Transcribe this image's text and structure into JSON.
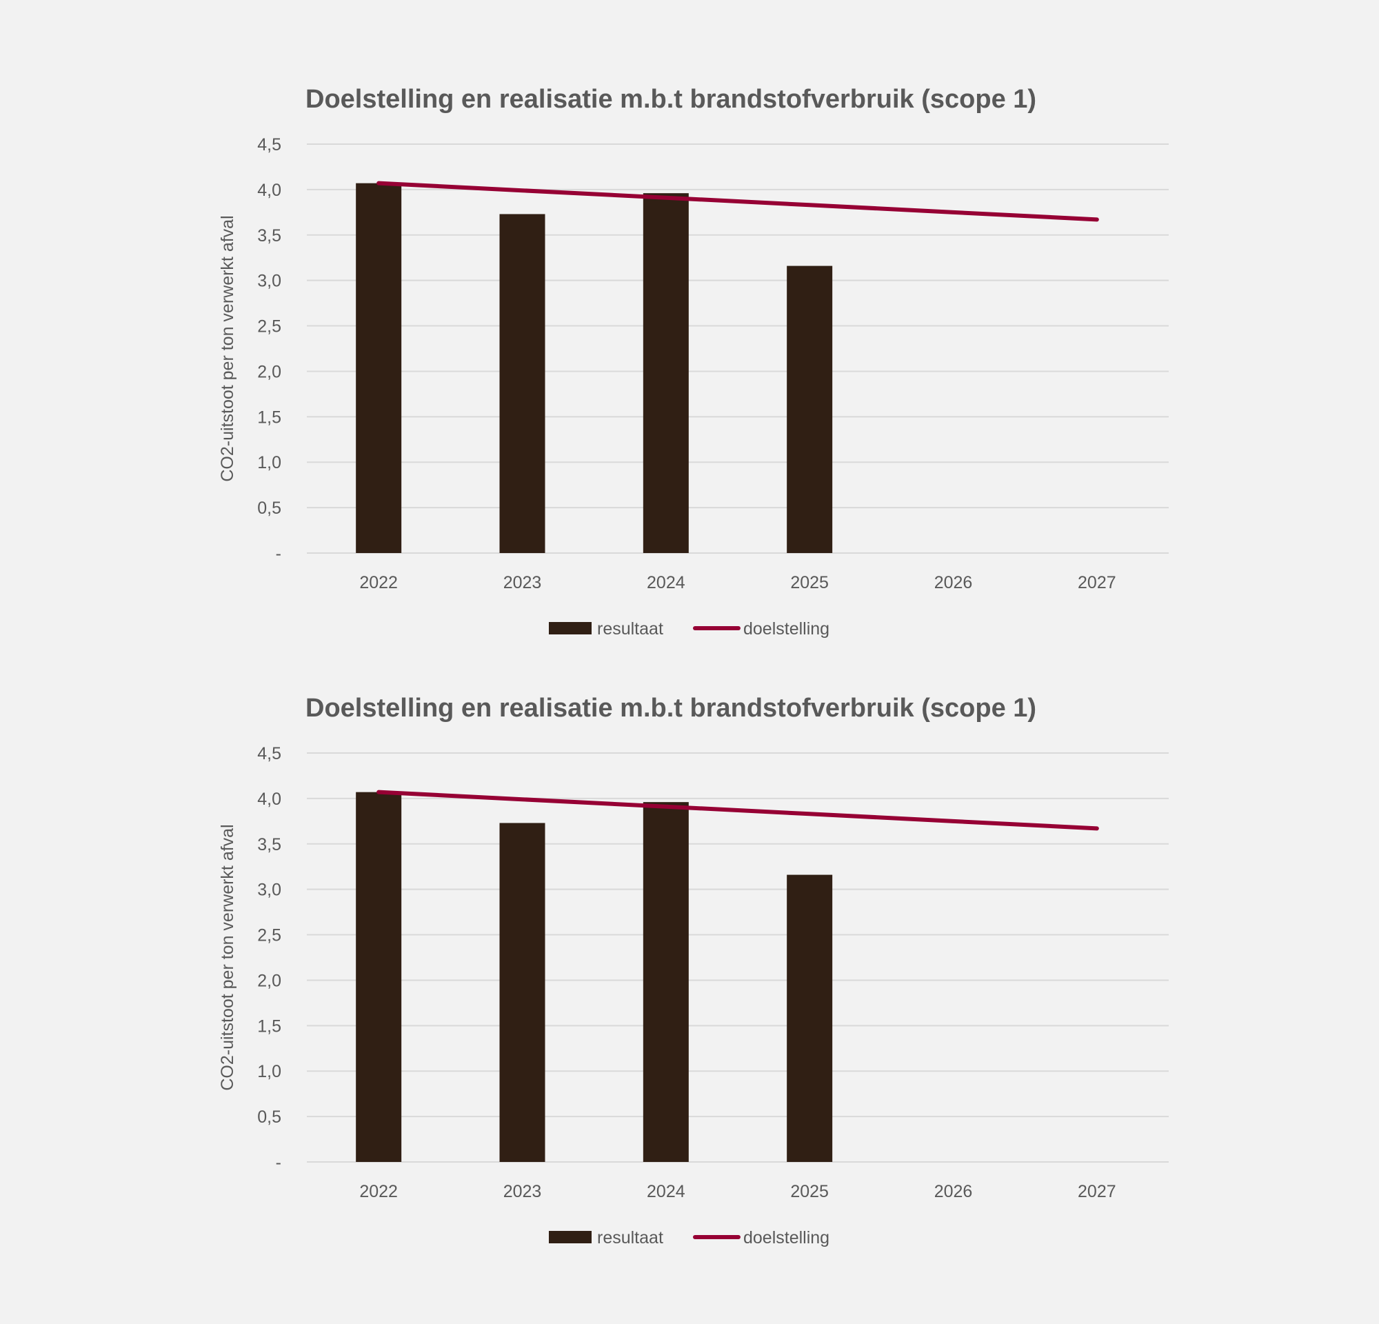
{
  "chart_data": [
    {
      "type": "bar",
      "title": "Doelstelling en realisatie m.b.t brandstofverbruik (scope 1)",
      "xlabel": "",
      "ylabel": "CO2-uitstoot per ton verwerkt afval",
      "ylim": [
        0,
        4.5
      ],
      "yticks": [
        0,
        0.5,
        1.0,
        1.5,
        2.0,
        2.5,
        3.0,
        3.5,
        4.0,
        4.5
      ],
      "ytick_labels": [
        "-",
        "0,5",
        "1,0",
        "1,5",
        "2,0",
        "2,5",
        "3,0",
        "3,5",
        "4,0",
        "4,5"
      ],
      "grid": true,
      "legend_position": "bottom",
      "categories": [
        "2022",
        "2023",
        "2024",
        "2025",
        "2026",
        "2027"
      ],
      "series": [
        {
          "name": "resultaat",
          "kind": "bar",
          "color": "#301f14",
          "values": [
            4.07,
            3.73,
            3.96,
            3.16,
            null,
            null
          ]
        },
        {
          "name": "doelstelling",
          "kind": "line",
          "color": "#960034",
          "values": [
            4.07,
            3.99,
            3.91,
            3.83,
            3.75,
            3.67
          ]
        }
      ]
    },
    {
      "type": "bar",
      "title": "Doelstelling en realisatie m.b.t brandstofverbruik (scope 1)",
      "xlabel": "",
      "ylabel": "CO2-uitstoot per ton verwerkt afval",
      "ylim": [
        0,
        4.5
      ],
      "yticks": [
        0,
        0.5,
        1.0,
        1.5,
        2.0,
        2.5,
        3.0,
        3.5,
        4.0,
        4.5
      ],
      "ytick_labels": [
        "-",
        "0,5",
        "1,0",
        "1,5",
        "2,0",
        "2,5",
        "3,0",
        "3,5",
        "4,0",
        "4,5"
      ],
      "grid": true,
      "legend_position": "bottom",
      "categories": [
        "2022",
        "2023",
        "2024",
        "2025",
        "2026",
        "2027"
      ],
      "series": [
        {
          "name": "resultaat",
          "kind": "bar",
          "color": "#301f14",
          "values": [
            4.07,
            3.73,
            3.96,
            3.16,
            null,
            null
          ]
        },
        {
          "name": "doelstelling",
          "kind": "line",
          "color": "#960034",
          "values": [
            4.07,
            3.99,
            3.91,
            3.83,
            3.75,
            3.67
          ]
        }
      ]
    }
  ]
}
